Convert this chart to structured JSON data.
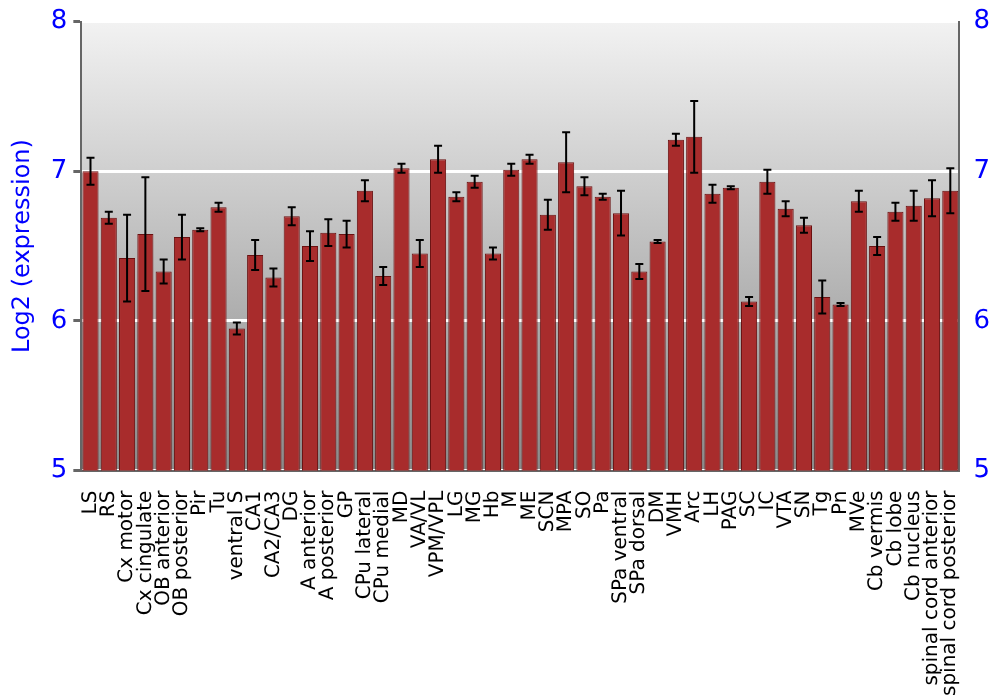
{
  "chart_data": {
    "type": "bar",
    "ylabel": "Log2 (expression)",
    "categories": [
      "LS",
      "RS",
      "Cx motor",
      "Cx cingulate",
      "OB anterior",
      "OB posterior",
      "Pir",
      "Tu",
      "ventral S",
      "CA1",
      "CA2/CA3",
      "DG",
      "A anterior",
      "A posterior",
      "GP",
      "CPu lateral",
      "CPu medial",
      "MD",
      "VA/VL",
      "VPM/VPL",
      "LG",
      "MG",
      "Hb",
      "M",
      "ME",
      "SCN",
      "MPA",
      "SO",
      "Pa",
      "SPa ventral",
      "SPa dorsal",
      "DM",
      "VMH",
      "Arc",
      "LH",
      "PAG",
      "SC",
      "IC",
      "VTA",
      "SN",
      "Tg",
      "Pn",
      "MVe",
      "Cb vermis",
      "Cb lobe",
      "Cb nucleus",
      "spinal cord anterior",
      "spinal cord posterior"
    ],
    "values": [
      7.0,
      6.69,
      6.42,
      6.58,
      6.33,
      6.56,
      6.61,
      6.76,
      5.95,
      6.44,
      6.29,
      6.7,
      6.5,
      6.59,
      6.58,
      6.87,
      6.3,
      7.02,
      6.45,
      7.08,
      6.83,
      6.93,
      6.45,
      7.01,
      7.08,
      6.71,
      7.06,
      6.9,
      6.83,
      6.72,
      6.33,
      6.53,
      7.21,
      7.23,
      6.85,
      6.89,
      6.13,
      6.93,
      6.75,
      6.64,
      6.16,
      6.11,
      6.8,
      6.5,
      6.73,
      6.77,
      6.82,
      6.87
    ],
    "errors": [
      0.09,
      0.04,
      0.29,
      0.38,
      0.08,
      0.15,
      0.01,
      0.03,
      0.04,
      0.1,
      0.06,
      0.06,
      0.1,
      0.09,
      0.09,
      0.07,
      0.06,
      0.03,
      0.09,
      0.09,
      0.03,
      0.04,
      0.04,
      0.04,
      0.03,
      0.1,
      0.2,
      0.06,
      0.02,
      0.15,
      0.05,
      0.01,
      0.04,
      0.24,
      0.06,
      0.01,
      0.03,
      0.08,
      0.05,
      0.05,
      0.11,
      0.01,
      0.07,
      0.06,
      0.06,
      0.1,
      0.12,
      0.15
    ],
    "color": "#a82c2c",
    "ylim": [
      5,
      8
    ],
    "yticks": [
      5,
      6,
      7,
      8
    ],
    "y2lim": [
      5,
      8
    ],
    "y2ticks": [
      5,
      6,
      7,
      8
    ],
    "grid": "y",
    "legend": false
  }
}
